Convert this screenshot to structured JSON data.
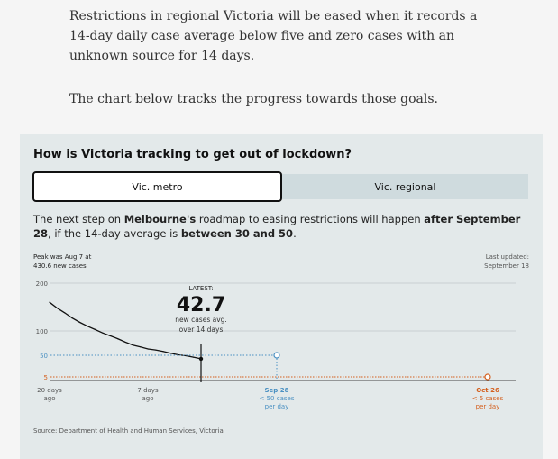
{
  "article": {
    "paragraph1": "Restrictions in regional Victoria will be eased when it records a 14-day daily case average below five and zero cases with an unknown source for 14 days.",
    "paragraph2": "The chart below tracks the progress towards those goals."
  },
  "widget": {
    "title": "How is Victoria tracking to get out of lockdown?",
    "tabs": [
      {
        "label": "Vic. metro",
        "active": true
      },
      {
        "label": "Vic. regional",
        "active": false
      }
    ],
    "roadmap": {
      "t1": "The next step on ",
      "b1": "Melbourne's",
      "t2": " roadmap to easing restrictions will happen ",
      "b2": "after September 28",
      "t3": ", if the 14-day average is ",
      "b3": "between 30 and 50",
      "t4": "."
    },
    "peak": {
      "line1": "Peak was Aug 7 at",
      "line2": "430.6 new cases"
    },
    "updated": {
      "line1": "Last updated:",
      "line2": "September 18"
    },
    "source": "Source: Department of Health and Human Services, Victoria"
  },
  "colors": {
    "line": "#111111",
    "target_blue": "#4a90c2",
    "target_orange": "#d4601f",
    "background": "#e3e9ea"
  },
  "chart_data": {
    "type": "line",
    "y_ticks": [
      "200",
      "100",
      "50",
      "5"
    ],
    "x_labels": [
      {
        "line1": "20 days",
        "line2": "ago"
      },
      {
        "line1": "7 days",
        "line2": "ago"
      }
    ],
    "latest": {
      "label": "LATEST:",
      "value": "42.7",
      "caption1": "new cases avg.",
      "caption2": "over 14 days"
    },
    "targets": [
      {
        "date": "Sep 28",
        "line2": "< 50 cases",
        "line3": "per day",
        "value": 50
      },
      {
        "date": "Oct 26",
        "line2": "< 5 cases",
        "line3": "per day",
        "value": 5
      }
    ],
    "x": [
      -20,
      -19,
      -18,
      -17,
      -16,
      -15,
      -14,
      -13,
      -12,
      -11,
      -10,
      -9,
      -8,
      -7,
      -6,
      -5,
      -4,
      -3,
      -2,
      -1,
      0
    ],
    "values": [
      160,
      148,
      138,
      127,
      118,
      110,
      103,
      96,
      90,
      84,
      77,
      71,
      67,
      63,
      61,
      58,
      54,
      51,
      49,
      46,
      42.7
    ],
    "ylim": [
      0,
      200
    ],
    "grid": true
  }
}
